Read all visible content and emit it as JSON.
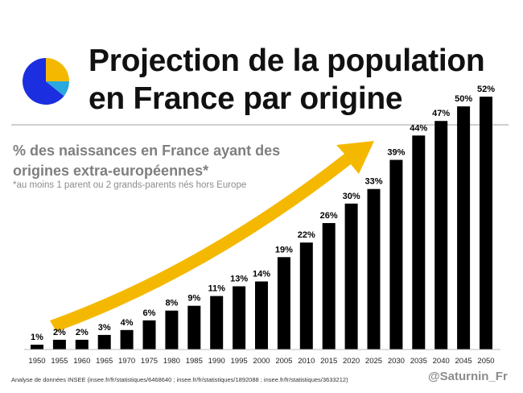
{
  "header": {
    "title_line1": "Projection de la population",
    "title_line2": "en France par origine",
    "subtitle_line1": "% des naissances en France ayant des",
    "subtitle_line2": "origines extra-européennes*",
    "footnote": "*au moins 1 parent ou 2 grands-parents nés hors Europe"
  },
  "footer": {
    "source": "Analyse de données INSEE (insee.fr/fr/statistiques/6468640 ; insee.fr/fr/statistiques/1892088 ; insee.fr/fr/statistiques/3633212)",
    "handle": "@Saturnin_Fr"
  },
  "logo": {
    "icon": "pie-chart-icon",
    "colors": [
      "#1b2fe0",
      "#f5b800",
      "#2aa8e0"
    ]
  },
  "colors": {
    "bars": "#000000",
    "arrow": "#f5b800",
    "title": "#111111",
    "subtitle": "#7f7f7f"
  },
  "chart_data": {
    "type": "bar",
    "title": "% des naissances en France ayant des origines extra-européennes*",
    "xlabel": "",
    "ylabel": "",
    "categories": [
      "1950",
      "1955",
      "1960",
      "1965",
      "1970",
      "1975",
      "1980",
      "1985",
      "1990",
      "1995",
      "2000",
      "2005",
      "2010",
      "2015",
      "2020",
      "2025",
      "2030",
      "2035",
      "2040",
      "2045",
      "2050"
    ],
    "values": [
      1,
      2,
      2,
      3,
      4,
      6,
      8,
      9,
      11,
      13,
      14,
      19,
      22,
      26,
      30,
      33,
      39,
      44,
      47,
      50,
      52
    ],
    "value_labels": [
      "1%",
      "2%",
      "2%",
      "3%",
      "4%",
      "6%",
      "8%",
      "9%",
      "11%",
      "13%",
      "14%",
      "19%",
      "22%",
      "26%",
      "30%",
      "33%",
      "39%",
      "44%",
      "47%",
      "50%",
      "52%"
    ],
    "ylim": [
      0,
      52
    ],
    "grid": false,
    "legend": "none",
    "annotation": "rising trend arrow"
  }
}
